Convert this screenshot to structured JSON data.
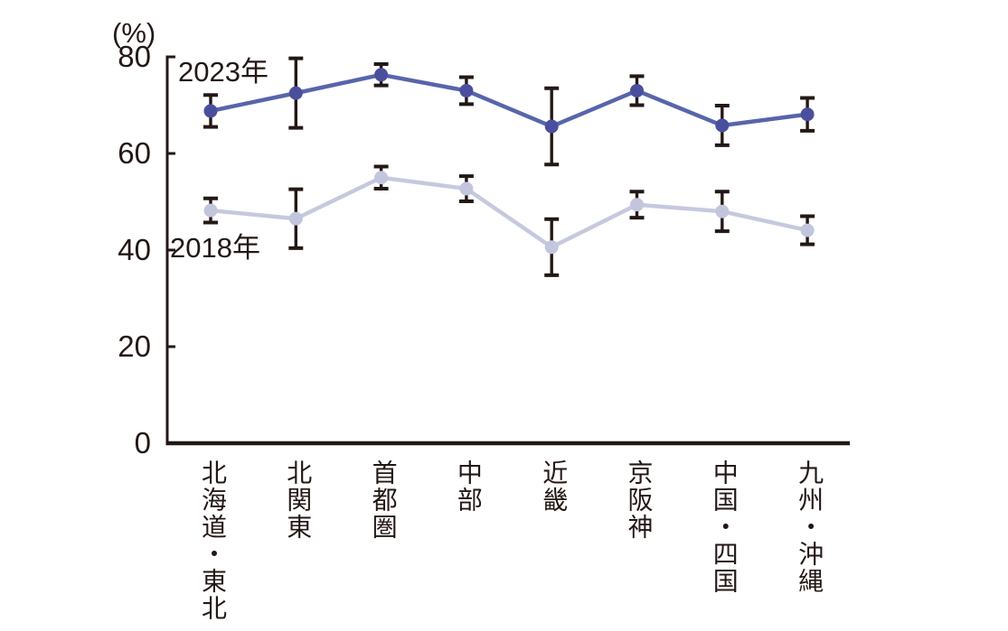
{
  "chart_data": {
    "type": "line",
    "title": "",
    "unit_label": "(%)",
    "categories": [
      "北海道・東北",
      "北関東",
      "首都圏",
      "中部",
      "近畿",
      "京阪神",
      "中国・四国",
      "九州・沖縄"
    ],
    "yticks": [
      0,
      20,
      40,
      60,
      80
    ],
    "ylim": [
      0,
      80
    ],
    "grid": false,
    "legend_position": "in-plot-text-labels",
    "series": [
      {
        "name": "2023年",
        "values": [
          68.8,
          72.5,
          76.3,
          73.0,
          65.6,
          73.0,
          65.8,
          68.1
        ],
        "error_plus_minus": [
          3.3,
          7.2,
          2.2,
          2.8,
          7.9,
          3.0,
          4.1,
          3.4
        ],
        "marker_color": "#4a4f9d",
        "line_color": "#5765ab"
      },
      {
        "name": "2018年",
        "values": [
          48.2,
          46.5,
          55.0,
          52.7,
          40.6,
          49.4,
          48.0,
          44.1
        ],
        "error_plus_minus": [
          2.5,
          6.1,
          2.3,
          2.6,
          5.8,
          2.7,
          4.1,
          2.9
        ],
        "marker_color": "#c2c5dc",
        "line_color": "#c6c9de"
      }
    ],
    "error_bar_color": "#231815",
    "axis_color": "#231815",
    "text_color": "#231815",
    "background_color": "#ffffff"
  }
}
